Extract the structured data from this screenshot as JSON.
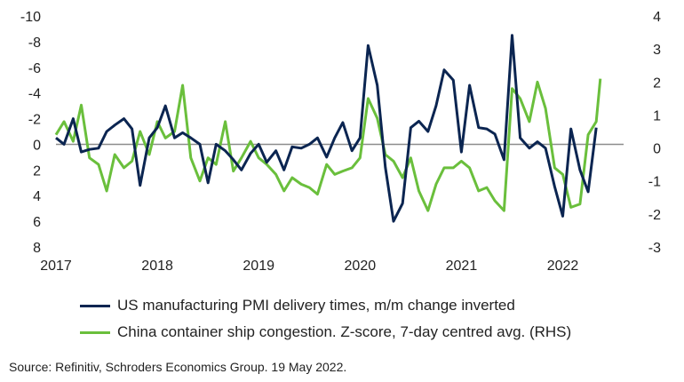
{
  "chart_data": {
    "type": "line",
    "title": "",
    "xlabel": "",
    "x_ticks": [
      "2017",
      "2018",
      "2019",
      "2020",
      "2021",
      "2022"
    ],
    "xlim": [
      2017.0,
      2022.6
    ],
    "y_left": {
      "lim": [
        -10,
        8
      ],
      "inverted": true,
      "ticks": [
        "-10",
        "-8",
        "-6",
        "-4",
        "-2",
        "0",
        "2",
        "4",
        "6",
        "8"
      ]
    },
    "y_right": {
      "lim": [
        -3,
        4
      ],
      "ticks": [
        "4",
        "3",
        "2",
        "1",
        "0",
        "-1",
        "-2",
        "-3"
      ]
    },
    "zero_line": true,
    "grid": false,
    "legend_position": "bottom",
    "series": [
      {
        "name": "US manufacturing PMI delivery times, m/m change inverted",
        "axis": "left",
        "color": "#0b2551",
        "x": [
          2017.0,
          2017.08,
          2017.17,
          2017.25,
          2017.33,
          2017.42,
          2017.5,
          2017.58,
          2017.67,
          2017.75,
          2017.83,
          2017.92,
          2018.0,
          2018.08,
          2018.17,
          2018.25,
          2018.33,
          2018.42,
          2018.5,
          2018.58,
          2018.67,
          2018.75,
          2018.83,
          2018.92,
          2019.0,
          2019.08,
          2019.17,
          2019.25,
          2019.33,
          2019.42,
          2019.5,
          2019.58,
          2019.67,
          2019.75,
          2019.83,
          2019.92,
          2020.0,
          2020.08,
          2020.17,
          2020.25,
          2020.33,
          2020.42,
          2020.5,
          2020.58,
          2020.67,
          2020.75,
          2020.83,
          2020.92,
          2021.0,
          2021.08,
          2021.17,
          2021.25,
          2021.33,
          2021.42,
          2021.5,
          2021.58,
          2021.67,
          2021.75,
          2021.83,
          2021.92,
          2022.0,
          2022.08,
          2022.17,
          2022.25,
          2022.33
        ],
        "values": [
          -0.5,
          0,
          -2,
          0.6,
          0.4,
          0.3,
          -1,
          -1.5,
          -2,
          -1.2,
          3.2,
          -0.5,
          -1.3,
          -3,
          -0.5,
          -0.9,
          -0.5,
          0,
          3,
          0,
          0.5,
          1.2,
          2,
          0.7,
          0,
          1.4,
          0.5,
          2,
          0.2,
          0.3,
          0,
          -0.5,
          1,
          -0.5,
          -1.7,
          0.5,
          -0.5,
          -7.7,
          -4.6,
          1.8,
          6,
          4.6,
          -1.3,
          -1.8,
          -1,
          -3,
          -5.8,
          -5,
          0.6,
          -4.6,
          -1.3,
          -1.2,
          -0.8,
          1.2,
          -8.5,
          -0.5,
          0.3,
          -0.2,
          0.3,
          3.3,
          5.6,
          -1.2,
          2,
          3.7,
          -1.3
        ]
      },
      {
        "name": "China container ship congestion. Z-score, 7-day centred avg. (RHS)",
        "axis": "right",
        "color": "#6abf3c",
        "x": [
          2017.0,
          2017.08,
          2017.17,
          2017.25,
          2017.33,
          2017.42,
          2017.5,
          2017.58,
          2017.67,
          2017.75,
          2017.83,
          2017.92,
          2018.0,
          2018.08,
          2018.17,
          2018.25,
          2018.33,
          2018.42,
          2018.5,
          2018.58,
          2018.67,
          2018.75,
          2018.83,
          2018.92,
          2019.0,
          2019.08,
          2019.17,
          2019.25,
          2019.33,
          2019.42,
          2019.5,
          2019.58,
          2019.67,
          2019.75,
          2019.83,
          2019.92,
          2020.0,
          2020.08,
          2020.17,
          2020.25,
          2020.33,
          2020.42,
          2020.5,
          2020.58,
          2020.67,
          2020.75,
          2020.83,
          2020.92,
          2021.0,
          2021.08,
          2021.17,
          2021.25,
          2021.33,
          2021.42,
          2021.5,
          2021.58,
          2021.67,
          2021.75,
          2021.83,
          2021.92,
          2022.0,
          2022.08,
          2022.17,
          2022.25,
          2022.33,
          2022.37
        ],
        "values": [
          0.4,
          0.8,
          0.2,
          1.3,
          -0.3,
          -0.5,
          -1.3,
          -0.2,
          -0.6,
          -0.4,
          0.5,
          -0.2,
          0.8,
          0.3,
          0.5,
          1.9,
          -0.3,
          -1.0,
          -0.3,
          -0.5,
          0.8,
          -0.7,
          -0.3,
          0.2,
          -0.3,
          -0.5,
          -0.8,
          -1.3,
          -0.9,
          -1.1,
          -1.2,
          -1.4,
          -0.5,
          -0.8,
          -0.7,
          -0.6,
          -0.3,
          1.5,
          0.9,
          -0.2,
          -0.4,
          -0.9,
          -0.3,
          -1.3,
          -1.9,
          -1.1,
          -0.6,
          -0.6,
          -0.4,
          -0.6,
          -1.3,
          -1.2,
          -1.6,
          -1.9,
          1.8,
          1.5,
          0.8,
          2.0,
          1.2,
          -0.6,
          -0.8,
          -1.8,
          -1.7,
          0.4,
          0.8,
          2.1
        ]
      }
    ],
    "source": "Source: Refinitiv, Schroders Economics Group. 19 May 2022."
  }
}
